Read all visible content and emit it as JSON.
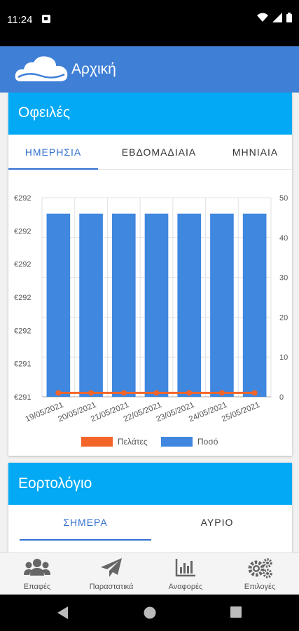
{
  "status_bar": {
    "time": "11:24"
  },
  "app_bar": {
    "title": "Αρχική"
  },
  "debts_card": {
    "title": "Οφειλές",
    "tabs": [
      {
        "label": "ΗΜΕΡΗΣΙΑ",
        "active": true
      },
      {
        "label": "ΕΒΔΟΜΑΔΙΑΙΑ",
        "active": false
      },
      {
        "label": "ΜΗΝΙΑΙΑ",
        "active": false
      }
    ]
  },
  "chart_data": {
    "type": "bar",
    "categories": [
      "19/05/2021",
      "20/05/2021",
      "21/05/2021",
      "22/05/2021",
      "23/05/2021",
      "24/05/2021",
      "25/05/2021"
    ],
    "series": [
      {
        "name": "Ποσό",
        "type": "bar",
        "axis": "right",
        "color": "#3f87df",
        "values": [
          46,
          46,
          46,
          46,
          46,
          46,
          46
        ]
      },
      {
        "name": "Πελάτες",
        "type": "line",
        "axis": "right",
        "color": "#f4652a",
        "values": [
          1,
          1,
          1,
          1,
          1,
          1,
          1
        ]
      }
    ],
    "left_ticks": [
      "€292",
      "€292",
      "€292",
      "€292",
      "€292",
      "€291",
      "€291"
    ],
    "right_ticks": [
      50,
      40,
      30,
      20,
      10,
      0
    ],
    "ylim_right": [
      0,
      50
    ],
    "grid": true,
    "legend": "bottom-center"
  },
  "feasts_card": {
    "title": "Εορτολόγιο",
    "tabs": [
      {
        "label": "ΣΗΜΕΡΑ",
        "active": true
      },
      {
        "label": "ΑΥΡΙΟ",
        "active": false
      }
    ]
  },
  "bottom_nav": [
    {
      "label": "Επαφές",
      "icon": "contacts-icon"
    },
    {
      "label": "Παραστατικά",
      "icon": "paper-plane-icon"
    },
    {
      "label": "Αναφορές",
      "icon": "bar-chart-icon"
    },
    {
      "label": "Επιλογές",
      "icon": "gears-icon"
    }
  ]
}
